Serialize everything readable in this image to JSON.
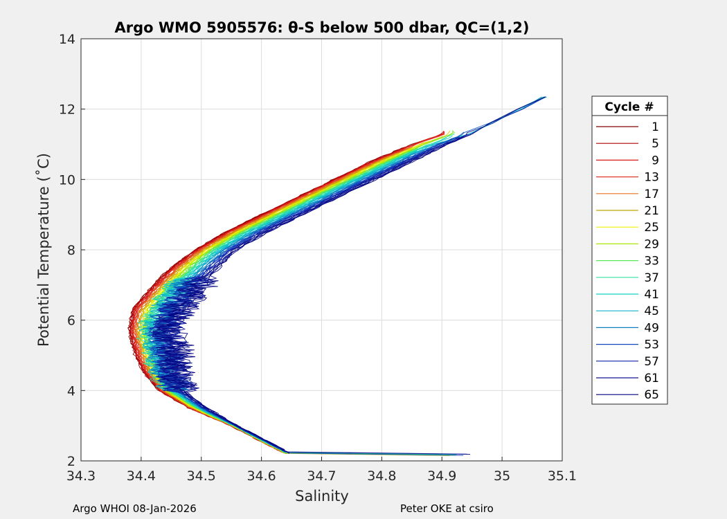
{
  "chart_data": {
    "type": "line",
    "title": "Argo WMO 5905576: θ-S below 500 dbar,  QC=(1,2)",
    "xlabel": "Salinity",
    "ylabel": "Potential Temperature (˚C)",
    "xlim": [
      34.3,
      35.1
    ],
    "ylim": [
      2,
      14
    ],
    "xticks": [
      "34.3",
      "34.4",
      "34.5",
      "34.6",
      "34.7",
      "34.8",
      "34.9",
      "35",
      "35.1"
    ],
    "yticks": [
      "2",
      "4",
      "6",
      "8",
      "10",
      "12",
      "14"
    ],
    "grid": true,
    "legend": {
      "title": "Cycle #",
      "placement": "outside-right",
      "entries": [
        "1",
        "5",
        "9",
        "13",
        "17",
        "21",
        "25",
        "29",
        "33",
        "37",
        "41",
        "45",
        "49",
        "53",
        "57",
        "61",
        "65"
      ],
      "colors": [
        "#800000",
        "#b00000",
        "#d81818",
        "#e03828",
        "#e87018",
        "#c8a800",
        "#f0f000",
        "#a8e800",
        "#58e858",
        "#30e0a0",
        "#10d0c0",
        "#10b0d0",
        "#1080c0",
        "#1048c0",
        "#1020a8",
        "#101890",
        "#000080"
      ]
    },
    "series_shape": {
      "description": "theta-S curves for cycles 1-65, salinity minimum near theta 5.7",
      "theta": [
        2.2,
        3.0,
        3.5,
        4.0,
        4.5,
        5.0,
        5.7,
        6.3,
        7.0,
        7.5,
        8.0,
        8.5,
        9.0,
        9.5,
        10.0,
        10.5,
        11.0,
        11.3
      ],
      "salinity_early": [
        34.64,
        34.55,
        34.48,
        34.43,
        34.405,
        34.39,
        34.38,
        34.385,
        34.42,
        34.45,
        34.49,
        34.54,
        34.6,
        34.66,
        34.72,
        34.78,
        34.85,
        34.9
      ],
      "salinity_late": [
        34.65,
        34.56,
        34.51,
        34.47,
        34.46,
        34.46,
        34.45,
        34.47,
        34.5,
        34.53,
        34.56,
        34.61,
        34.67,
        34.73,
        34.79,
        34.85,
        34.91,
        34.95
      ],
      "late_upper_extension": {
        "theta": [
          11.3,
          11.6,
          12.0,
          12.35
        ],
        "salinity": [
          34.95,
          34.98,
          35.03,
          35.07
        ]
      }
    }
  },
  "footer": {
    "left": "Argo WHOI 08-Jan-2026",
    "right": "Peter OKE at csiro"
  }
}
